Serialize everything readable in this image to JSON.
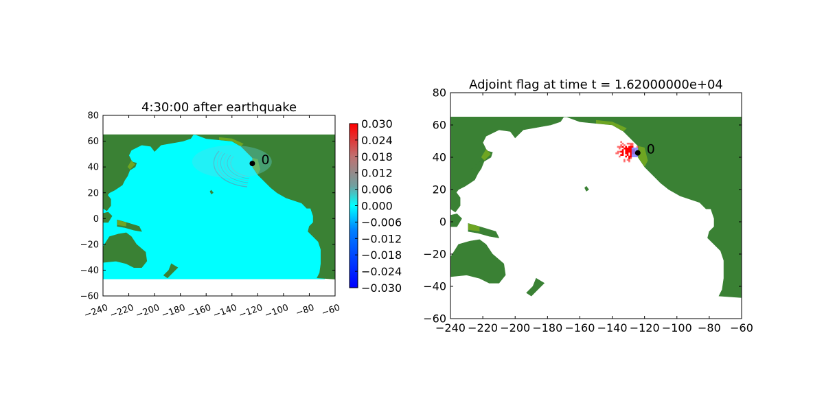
{
  "colors": {
    "ocean": "#00ffff",
    "land": "#3a8134",
    "land_light": "#7cae1e",
    "positive": "#ff0000",
    "negative": "#0000ff",
    "gauge_marker": "#000000",
    "flag_region": "#8080ff"
  },
  "chart_data": [
    {
      "type": "heatmap",
      "title": "4:30:00 after earthquake",
      "xlabel": "",
      "ylabel": "",
      "xlim": [
        -240,
        -60
      ],
      "ylim": [
        -60,
        80
      ],
      "xticks": [
        "−240",
        "−220",
        "−200",
        "−180",
        "−160",
        "−140",
        "−120",
        "−100",
        "−80",
        "−60"
      ],
      "yticks": [
        "80",
        "60",
        "40",
        "20",
        "0",
        "−20",
        "−40",
        "−60"
      ],
      "xtick_rotation": "rotated",
      "data_extent": {
        "x": [
          -240,
          -68
        ],
        "y": [
          -47,
          65
        ]
      },
      "gauge": {
        "label": "0",
        "lon": -124.2,
        "lat": 42.7
      },
      "colorbar": {
        "range": [
          -0.03,
          0.03
        ],
        "ticks": [
          "0.030",
          "0.024",
          "0.018",
          "0.012",
          "0.006",
          "0.000",
          "−0.006",
          "−0.012",
          "−0.018",
          "−0.024",
          "−0.030"
        ]
      },
      "wave_front": {
        "center_lon": -124,
        "center_lat": 43,
        "radius_deg": 30
      }
    },
    {
      "type": "heatmap",
      "title": "Adjoint flag at time t = 1.62000000e+04",
      "xlabel": "",
      "ylabel": "",
      "xlim": [
        -240,
        -60
      ],
      "ylim": [
        -60,
        80
      ],
      "xticks": [
        "−240",
        "−220",
        "−200",
        "−180",
        "−160",
        "−140",
        "−120",
        "−100",
        "−80",
        "−60"
      ],
      "yticks": [
        "80",
        "60",
        "40",
        "20",
        "0",
        "−20",
        "−40",
        "−60"
      ],
      "gauge": {
        "label": "0",
        "lon": -124.2,
        "lat": 42.7
      },
      "flag_region": {
        "lon": [
          -138,
          -124
        ],
        "lat": [
          36,
          50
        ]
      },
      "flag_box": {
        "lon": [
          -128,
          -124
        ],
        "lat": [
          40,
          46
        ]
      }
    }
  ]
}
